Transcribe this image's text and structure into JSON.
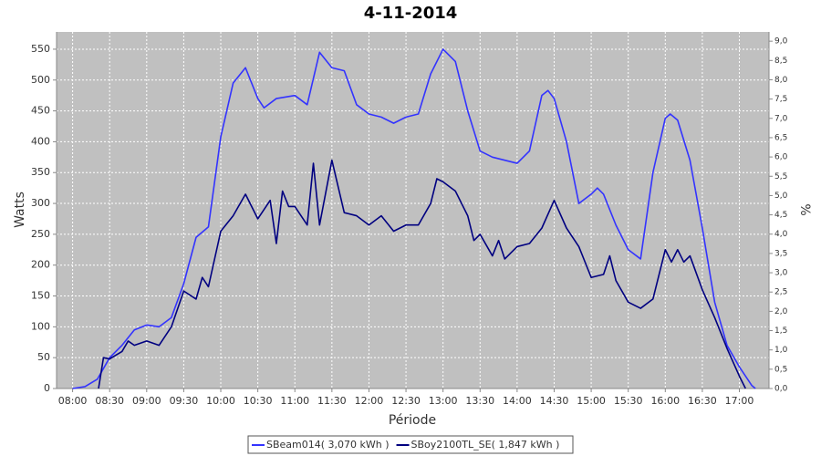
{
  "chart_data": {
    "type": "line",
    "title": "4-11-2014",
    "x_label": "Période",
    "y_label": "Watts",
    "y2_label": "%",
    "xlim": [
      "07:47",
      "17:24"
    ],
    "xticks": [
      "08:00",
      "08:30",
      "09:00",
      "09:30",
      "10:00",
      "10:30",
      "11:00",
      "11:30",
      "12:00",
      "12:30",
      "13:00",
      "13:30",
      "14:00",
      "14:30",
      "15:00",
      "15:30",
      "16:00",
      "16:30",
      "17:00"
    ],
    "ylim": [
      0,
      578
    ],
    "yticks": [
      0,
      50,
      100,
      150,
      200,
      250,
      300,
      350,
      400,
      450,
      500,
      550
    ],
    "y2lim": [
      0,
      9.24
    ],
    "y2ticks": [
      {
        "value": 0,
        "label": "0,0"
      },
      {
        "value": 0.5,
        "label": "0,5"
      },
      {
        "value": 1,
        "label": "1,0"
      },
      {
        "value": 1.5,
        "label": "1,5"
      },
      {
        "value": 2,
        "label": "2,0"
      },
      {
        "value": 2.5,
        "label": "2,5"
      },
      {
        "value": 3,
        "label": "3,0"
      },
      {
        "value": 3.5,
        "label": "3,5"
      },
      {
        "value": 4,
        "label": "4,0"
      },
      {
        "value": 4.5,
        "label": "4,5"
      },
      {
        "value": 5,
        "label": "5,0"
      },
      {
        "value": 5.5,
        "label": "5,5"
      },
      {
        "value": 6,
        "label": "6,0"
      },
      {
        "value": 6.5,
        "label": "6,5"
      },
      {
        "value": 7,
        "label": "7,0"
      },
      {
        "value": 7.5,
        "label": "7,5"
      },
      {
        "value": 8,
        "label": "8,0"
      },
      {
        "value": 8.5,
        "label": "8,5"
      },
      {
        "value": 9,
        "label": "9,0"
      }
    ],
    "grid": true,
    "legend": "bottom",
    "series": [
      {
        "name": "SBeam014( 3,070 kWh )",
        "color": "#3333ff",
        "x": [
          "08:00",
          "08:10",
          "08:20",
          "08:30",
          "08:40",
          "08:50",
          "09:00",
          "09:10",
          "09:20",
          "09:30",
          "09:40",
          "09:50",
          "10:00",
          "10:10",
          "10:20",
          "10:30",
          "10:35",
          "10:45",
          "11:00",
          "11:10",
          "11:20",
          "11:30",
          "11:40",
          "11:50",
          "12:00",
          "12:10",
          "12:20",
          "12:30",
          "12:40",
          "12:50",
          "13:00",
          "13:10",
          "13:20",
          "13:30",
          "13:40",
          "13:50",
          "14:00",
          "14:10",
          "14:20",
          "14:25",
          "14:30",
          "14:40",
          "14:50",
          "15:00",
          "15:05",
          "15:10",
          "15:20",
          "15:30",
          "15:40",
          "15:50",
          "16:00",
          "16:04",
          "16:10",
          "16:20",
          "16:30",
          "16:40",
          "16:50",
          "17:00",
          "17:10",
          "17:13"
        ],
        "values": [
          0,
          3,
          15,
          50,
          70,
          95,
          103,
          100,
          115,
          170,
          245,
          262,
          408,
          495,
          520,
          470,
          455,
          470,
          475,
          460,
          545,
          520,
          515,
          460,
          445,
          440,
          430,
          440,
          445,
          510,
          550,
          530,
          450,
          385,
          375,
          370,
          365,
          385,
          475,
          483,
          470,
          400,
          300,
          315,
          325,
          315,
          265,
          225,
          210,
          350,
          438,
          445,
          435,
          370,
          260,
          140,
          70,
          35,
          5,
          0
        ]
      },
      {
        "name": "SBoy2100TL_SE( 1,847 kWh )",
        "color": "#000080",
        "x": [
          "08:21",
          "08:25",
          "08:30",
          "08:40",
          "08:45",
          "08:50",
          "09:00",
          "09:10",
          "09:20",
          "09:30",
          "09:40",
          "09:45",
          "09:50",
          "10:00",
          "10:10",
          "10:20",
          "10:30",
          "10:40",
          "10:45",
          "10:50",
          "10:55",
          "11:00",
          "11:10",
          "11:15",
          "11:20",
          "11:30",
          "11:40",
          "11:50",
          "12:00",
          "12:10",
          "12:20",
          "12:30",
          "12:40",
          "12:50",
          "12:55",
          "13:00",
          "13:10",
          "13:20",
          "13:25",
          "13:30",
          "13:40",
          "13:45",
          "13:50",
          "14:00",
          "14:10",
          "14:20",
          "14:30",
          "14:40",
          "14:50",
          "15:00",
          "15:10",
          "15:15",
          "15:20",
          "15:30",
          "15:40",
          "15:50",
          "16:00",
          "16:05",
          "16:10",
          "16:15",
          "16:20",
          "16:30",
          "16:40",
          "16:50",
          "17:00",
          "17:05"
        ],
        "values": [
          0,
          50,
          48,
          60,
          77,
          70,
          77,
          70,
          100,
          158,
          145,
          180,
          165,
          255,
          280,
          315,
          275,
          305,
          235,
          320,
          295,
          295,
          265,
          365,
          265,
          370,
          285,
          280,
          265,
          280,
          255,
          265,
          265,
          300,
          340,
          335,
          320,
          280,
          240,
          250,
          215,
          240,
          210,
          230,
          235,
          260,
          305,
          260,
          230,
          180,
          185,
          215,
          175,
          140,
          130,
          145,
          225,
          205,
          225,
          205,
          215,
          160,
          115,
          65,
          20,
          0
        ]
      }
    ]
  }
}
